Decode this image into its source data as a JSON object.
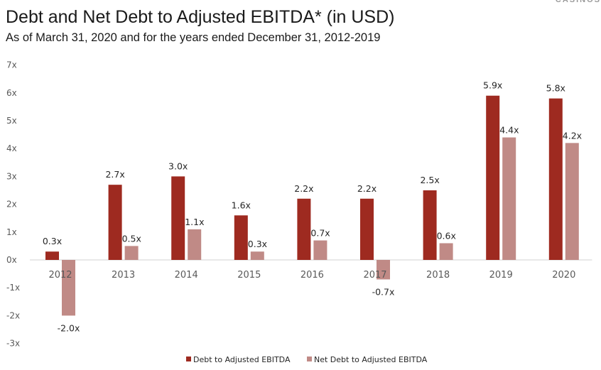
{
  "header": {
    "title": "Debt and Net Debt to Adjusted EBITDA* (in USD)",
    "subtitle": "As of March 31, 2020 and for the years ended December 31, 2012-2019",
    "brand": "CASINOS"
  },
  "chart_data": {
    "type": "bar",
    "title": "Debt and Net Debt to Adjusted EBITDA* (in USD)",
    "subtitle": "As of March 31, 2020 and for the years ended December 31, 2012-2019",
    "categories": [
      "2012",
      "2013",
      "2014",
      "2015",
      "2016",
      "2017",
      "2018",
      "2019",
      "2020"
    ],
    "series": [
      {
        "name": "Debt to Adjusted EBITDA",
        "color": "#9e2a20",
        "values": [
          0.3,
          2.7,
          3.0,
          1.6,
          2.2,
          2.2,
          2.5,
          5.9,
          5.8
        ],
        "labels": [
          "0.3x",
          "2.7x",
          "3.0x",
          "1.6x",
          "2.2x",
          "2.2x",
          "2.5x",
          "5.9x",
          "5.8x"
        ]
      },
      {
        "name": "Net Debt to Adjusted EBITDA",
        "color": "#c08a86",
        "values": [
          -2.0,
          0.5,
          1.1,
          0.3,
          0.7,
          -0.7,
          0.6,
          4.4,
          4.2
        ],
        "labels": [
          "-2.0x",
          "0.5x",
          "1.1x",
          "0.3x",
          "0.7x",
          "-0.7x",
          "0.6x",
          "4.4x",
          "4.2x"
        ]
      }
    ],
    "ylim": [
      -3,
      7
    ],
    "yticks": [
      -3,
      -2,
      -1,
      0,
      1,
      2,
      3,
      4,
      5,
      6,
      7
    ],
    "ytick_labels": [
      "-3x",
      "-2x",
      "-1x",
      "0x",
      "1x",
      "2x",
      "3x",
      "4x",
      "5x",
      "6x",
      "7x"
    ],
    "grid": false,
    "legend_position": "bottom-center",
    "xlabel": "",
    "ylabel": ""
  }
}
